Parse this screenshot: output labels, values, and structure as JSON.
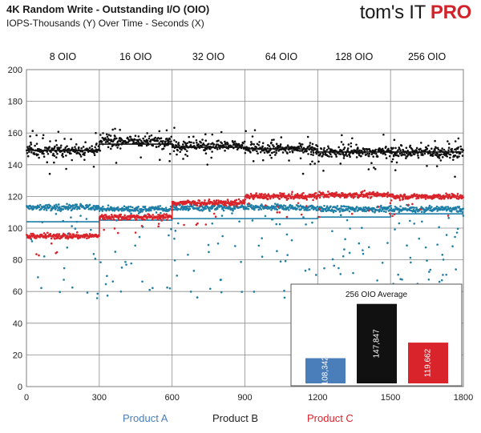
{
  "header": {
    "title": "4K Random Write - Outstanding I/O (OIO)",
    "subtitle": "IOPS-Thousands (Y) Over Time - Seconds (X)",
    "logo_main": "tom's IT ",
    "logo_accent": "PRO"
  },
  "colors": {
    "product_a": "#1f7ea6",
    "product_b": "#111111",
    "product_c": "#d9242b",
    "inset_a": "#4a7ebb",
    "inset_b": "#111111",
    "inset_c": "#d9242b",
    "legend_a": "#4a7ebb",
    "legend_b": "#222222",
    "legend_c": "#d9242b"
  },
  "chart_data": {
    "type": "scatter",
    "xlim": [
      0,
      1800
    ],
    "ylim": [
      0,
      200
    ],
    "x_ticks": [
      "0",
      "300",
      "600",
      "900",
      "1200",
      "1500",
      "1800"
    ],
    "y_ticks": [
      "0",
      "20",
      "40",
      "60",
      "80",
      "100",
      "120",
      "140",
      "160",
      "180",
      "200"
    ],
    "grid": true,
    "phases": [
      {
        "label": "8 OIO",
        "start": 0,
        "end": 300
      },
      {
        "label": "16 OIO",
        "start": 300,
        "end": 600
      },
      {
        "label": "32  OIO",
        "start": 600,
        "end": 900
      },
      {
        "label": "64 OIO",
        "start": 900,
        "end": 1200
      },
      {
        "label": "128 OIO",
        "start": 1200,
        "end": 1500
      },
      {
        "label": "256 OIO",
        "start": 1500,
        "end": 1800
      }
    ],
    "series": [
      {
        "name": "Product  A",
        "band_levels": [
          113,
          112,
          113,
          113,
          112,
          112
        ],
        "trend_levels": [
          104,
          105,
          106,
          106,
          107,
          109
        ],
        "outlier_range": [
          55,
          112
        ]
      },
      {
        "name": "Product  B",
        "band_levels": [
          149,
          155,
          152,
          150,
          148,
          148
        ],
        "trend_levels": [
          149,
          153,
          151,
          150,
          148,
          148
        ],
        "outlier_range": [
          130,
          183
        ]
      },
      {
        "name": "Product  C",
        "band_levels": [
          95,
          107,
          116,
          120,
          121,
          120
        ],
        "trend_levels": [
          95,
          107,
          116,
          120,
          121,
          120
        ],
        "outlier_range": [
          80,
          130
        ]
      }
    ],
    "inset": {
      "title": "256 OIO Average",
      "bars": [
        {
          "series": "Product  A",
          "value": 108.342,
          "label": "108,342"
        },
        {
          "series": "Product  B",
          "value": 147.847,
          "label": "147,847"
        },
        {
          "series": "Product  C",
          "value": 119.662,
          "label": "119,662"
        }
      ],
      "value_range": [
        90,
        150
      ]
    }
  }
}
